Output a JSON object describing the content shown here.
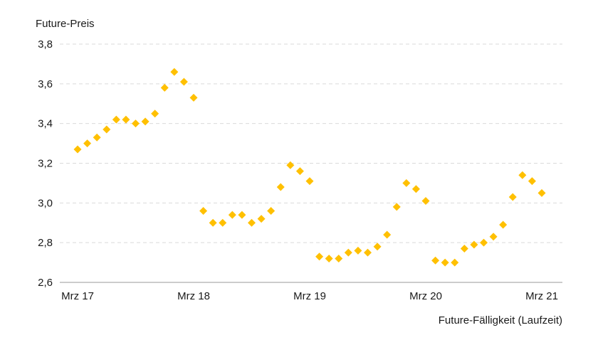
{
  "chart_data": {
    "type": "scatter",
    "ylabel": "Future-Preis",
    "xlabel": "Future-Fälligkeit (Laufzeit)",
    "ylim": [
      2.6,
      3.8
    ],
    "yticks": [
      "2,6",
      "2,8",
      "3,0",
      "3,2",
      "3,4",
      "3,6",
      "3,8"
    ],
    "ytick_values": [
      2.6,
      2.8,
      3.0,
      3.2,
      3.4,
      3.6,
      3.8
    ],
    "xticks": [
      "Mrz 17",
      "Mrz 18",
      "Mrz 19",
      "Mrz 20",
      "Mrz 21"
    ],
    "xtick_values": [
      "2017-03",
      "2018-03",
      "2019-03",
      "2020-03",
      "2021-03"
    ],
    "xlim": [
      "2017-03",
      "2021-03"
    ],
    "grid": "horizontal dashed",
    "marker": "diamond",
    "color": "#FFC000",
    "points": [
      {
        "x": "2017-03",
        "y": 3.27
      },
      {
        "x": "2017-04",
        "y": 3.3
      },
      {
        "x": "2017-05",
        "y": 3.33
      },
      {
        "x": "2017-06",
        "y": 3.37
      },
      {
        "x": "2017-07",
        "y": 3.42
      },
      {
        "x": "2017-08",
        "y": 3.42
      },
      {
        "x": "2017-09",
        "y": 3.4
      },
      {
        "x": "2017-10",
        "y": 3.41
      },
      {
        "x": "2017-11",
        "y": 3.45
      },
      {
        "x": "2017-12",
        "y": 3.58
      },
      {
        "x": "2018-01",
        "y": 3.66
      },
      {
        "x": "2018-02",
        "y": 3.61
      },
      {
        "x": "2018-03",
        "y": 3.53
      },
      {
        "x": "2018-04",
        "y": 2.96
      },
      {
        "x": "2018-05",
        "y": 2.9
      },
      {
        "x": "2018-06",
        "y": 2.9
      },
      {
        "x": "2018-07",
        "y": 2.94
      },
      {
        "x": "2018-08",
        "y": 2.94
      },
      {
        "x": "2018-09",
        "y": 2.9
      },
      {
        "x": "2018-10",
        "y": 2.92
      },
      {
        "x": "2018-11",
        "y": 2.96
      },
      {
        "x": "2018-12",
        "y": 3.08
      },
      {
        "x": "2019-01",
        "y": 3.19
      },
      {
        "x": "2019-02",
        "y": 3.16
      },
      {
        "x": "2019-03",
        "y": 3.11
      },
      {
        "x": "2019-04",
        "y": 2.73
      },
      {
        "x": "2019-05",
        "y": 2.72
      },
      {
        "x": "2019-06",
        "y": 2.72
      },
      {
        "x": "2019-07",
        "y": 2.75
      },
      {
        "x": "2019-08",
        "y": 2.76
      },
      {
        "x": "2019-09",
        "y": 2.75
      },
      {
        "x": "2019-10",
        "y": 2.78
      },
      {
        "x": "2019-11",
        "y": 2.84
      },
      {
        "x": "2019-12",
        "y": 2.98
      },
      {
        "x": "2020-01",
        "y": 3.1
      },
      {
        "x": "2020-02",
        "y": 3.07
      },
      {
        "x": "2020-03",
        "y": 3.01
      },
      {
        "x": "2020-04",
        "y": 2.71
      },
      {
        "x": "2020-05",
        "y": 2.7
      },
      {
        "x": "2020-06",
        "y": 2.7
      },
      {
        "x": "2020-07",
        "y": 2.77
      },
      {
        "x": "2020-08",
        "y": 2.79
      },
      {
        "x": "2020-09",
        "y": 2.8
      },
      {
        "x": "2020-10",
        "y": 2.83
      },
      {
        "x": "2020-11",
        "y": 2.89
      },
      {
        "x": "2020-12",
        "y": 3.03
      },
      {
        "x": "2021-01",
        "y": 3.14
      },
      {
        "x": "2021-02",
        "y": 3.11
      },
      {
        "x": "2021-03",
        "y": 3.05
      }
    ]
  }
}
